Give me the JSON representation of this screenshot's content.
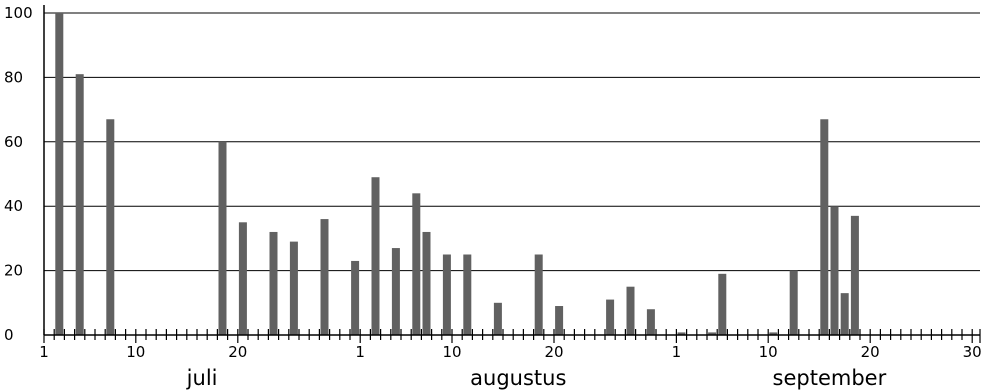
{
  "chart_data": {
    "type": "bar",
    "title": "",
    "xlabel": "",
    "ylabel": "",
    "ylim": [
      0,
      100
    ],
    "yticks": [
      0,
      20,
      40,
      60,
      80,
      100
    ],
    "grid": "horizontal",
    "months": [
      {
        "name": "juli",
        "days": 31,
        "tick_labels": [
          "1",
          "10",
          "20"
        ]
      },
      {
        "name": "augustus",
        "days": 31,
        "tick_labels": [
          "1",
          "10",
          "20"
        ]
      },
      {
        "name": "september",
        "days": 30,
        "tick_labels": [
          "1",
          "10",
          "20",
          "30"
        ]
      }
    ],
    "tick_label_days": [
      1,
      10,
      20
    ],
    "bars": [
      {
        "month": "juli",
        "day": 2,
        "value": 100
      },
      {
        "month": "juli",
        "day": 4,
        "value": 81
      },
      {
        "month": "juli",
        "day": 7,
        "value": 67
      },
      {
        "month": "juli",
        "day": 18,
        "value": 60
      },
      {
        "month": "juli",
        "day": 20,
        "value": 35
      },
      {
        "month": "juli",
        "day": 23,
        "value": 32
      },
      {
        "month": "juli",
        "day": 25,
        "value": 29
      },
      {
        "month": "juli",
        "day": 28,
        "value": 36
      },
      {
        "month": "juli",
        "day": 31,
        "value": 23
      },
      {
        "month": "augustus",
        "day": 2,
        "value": 49
      },
      {
        "month": "augustus",
        "day": 4,
        "value": 27
      },
      {
        "month": "augustus",
        "day": 6,
        "value": 44
      },
      {
        "month": "augustus",
        "day": 7,
        "value": 32
      },
      {
        "month": "augustus",
        "day": 9,
        "value": 25
      },
      {
        "month": "augustus",
        "day": 11,
        "value": 25
      },
      {
        "month": "augustus",
        "day": 14,
        "value": 10
      },
      {
        "month": "augustus",
        "day": 18,
        "value": 25
      },
      {
        "month": "augustus",
        "day": 20,
        "value": 9
      },
      {
        "month": "augustus",
        "day": 25,
        "value": 11
      },
      {
        "month": "augustus",
        "day": 27,
        "value": 15
      },
      {
        "month": "augustus",
        "day": 29,
        "value": 8
      },
      {
        "month": "september",
        "day": 1,
        "value": 0.8
      },
      {
        "month": "september",
        "day": 4,
        "value": 0.8
      },
      {
        "month": "september",
        "day": 5,
        "value": 19
      },
      {
        "month": "september",
        "day": 10,
        "value": 0.8
      },
      {
        "month": "september",
        "day": 12,
        "value": 20
      },
      {
        "month": "september",
        "day": 15,
        "value": 67
      },
      {
        "month": "september",
        "day": 16,
        "value": 40
      },
      {
        "month": "september",
        "day": 17,
        "value": 13
      },
      {
        "month": "september",
        "day": 18,
        "value": 37
      }
    ]
  }
}
